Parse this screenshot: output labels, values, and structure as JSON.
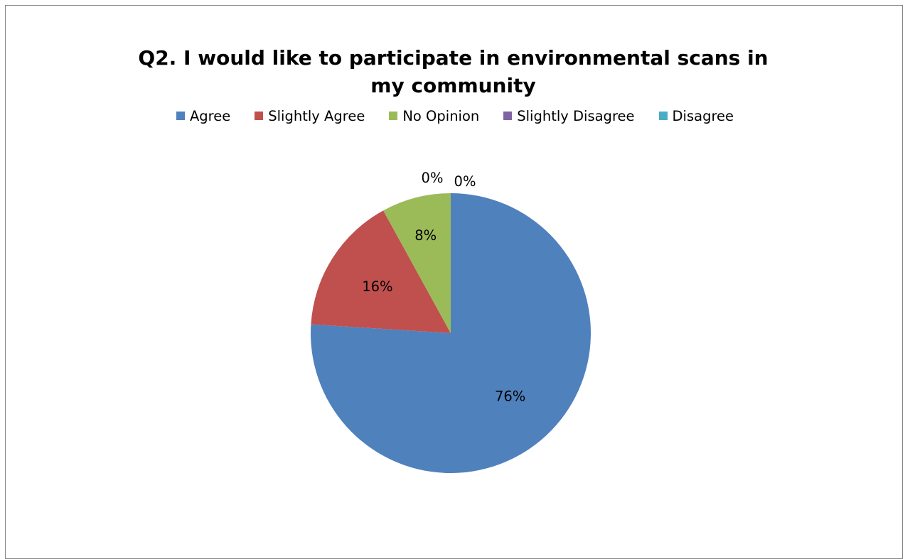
{
  "chart_data": {
    "type": "pie",
    "title": "Q2. I would like to participate in environmental scans in my community",
    "categories": [
      "Agree",
      "Slightly Agree",
      "No Opinion",
      "Slightly Disagree",
      "Disagree"
    ],
    "values": [
      76,
      16,
      8,
      0,
      0
    ],
    "data_labels": [
      "76%",
      "16%",
      "8%",
      "0%",
      "0%"
    ],
    "colors": [
      "#4f81bd",
      "#c0504d",
      "#9bbb59",
      "#8064a2",
      "#4bacc6"
    ],
    "start_angle_deg": 0,
    "direction": "clockwise",
    "legend_position": "top"
  }
}
